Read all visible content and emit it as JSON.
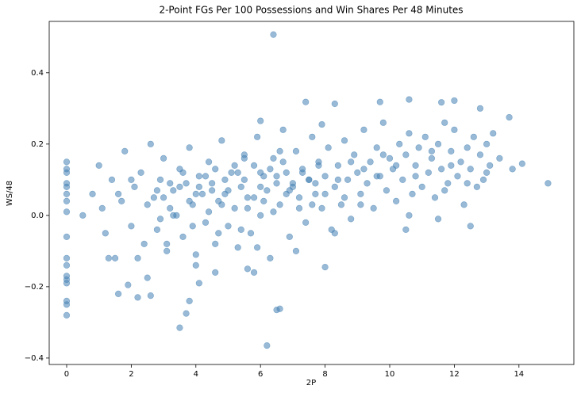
{
  "chart_data": {
    "type": "scatter",
    "title": "2-Point FGs Per 100 Possessions and Win Shares Per 48 Minutes",
    "x_label": "2P",
    "y_label": "WS/48",
    "color": "#4682b4",
    "xlim": [
      -0.54,
      15.7
    ],
    "ylim": [
      -0.418,
      0.544
    ],
    "xticks": [
      0,
      2,
      4,
      6,
      8,
      10,
      12,
      14
    ],
    "yticks": [
      {
        "value": -0.4,
        "label": "−0.4"
      },
      {
        "value": -0.2,
        "label": "−0.2"
      },
      {
        "value": 0,
        "label": "0.0"
      },
      0.2,
      0.4
    ],
    "x": [
      6.4,
      6.2,
      3.5,
      3.7,
      3.8,
      6.5,
      6.6,
      0,
      0,
      0,
      0,
      0,
      0,
      0,
      0,
      0,
      0,
      0,
      0,
      0,
      0,
      0,
      0,
      0,
      14.9,
      14.1,
      13.8,
      12.5,
      10.5,
      11.5,
      2.2,
      1.6,
      1.9,
      2.6,
      2.5,
      10.6,
      12.0,
      9.7,
      7.4,
      8.3,
      11.6,
      12.8,
      13.7,
      6.0,
      7.9,
      5.8,
      4.6,
      4.1,
      5.6,
      8.0,
      0.5,
      0.8,
      1.0,
      1.2,
      1.4,
      1.5,
      1.7,
      1.8,
      2.0,
      2.1,
      2.3,
      2.4,
      2.6,
      2.7,
      2.8,
      2.9,
      3.0,
      3.1,
      3.2,
      3.3,
      3.4,
      3.5,
      3.6,
      3.7,
      3.8,
      3.9,
      4.0,
      4.1,
      4.2,
      4.3,
      4.4,
      4.5,
      4.6,
      4.7,
      4.8,
      4.9,
      5.0,
      5.1,
      5.2,
      5.3,
      5.4,
      5.5,
      5.6,
      5.7,
      5.8,
      5.9,
      6.0,
      6.1,
      6.2,
      6.3,
      6.4,
      6.5,
      6.6,
      6.7,
      6.8,
      6.9,
      7.0,
      7.1,
      7.2,
      7.3,
      7.4,
      7.5,
      7.6,
      7.7,
      7.8,
      7.9,
      8.0,
      8.1,
      8.2,
      8.3,
      8.4,
      8.5,
      8.6,
      8.7,
      8.8,
      8.9,
      9.0,
      9.1,
      9.2,
      9.3,
      9.4,
      9.5,
      9.6,
      9.7,
      9.8,
      9.9,
      10.0,
      10.1,
      10.2,
      10.3,
      10.4,
      10.5,
      10.6,
      10.7,
      10.8,
      10.9,
      11.0,
      11.1,
      11.2,
      11.3,
      11.4,
      11.5,
      11.6,
      11.7,
      11.8,
      11.9,
      12.0,
      12.1,
      12.2,
      12.3,
      12.4,
      12.5,
      12.6,
      12.7,
      12.8,
      12.9,
      13.0,
      13.1,
      13.2,
      13.4,
      3.0,
      3.5,
      4.0,
      4.5,
      5.0,
      5.5,
      6.0,
      6.5,
      7.0,
      7.5,
      3.2,
      3.8,
      4.3,
      4.8,
      5.3,
      5.8,
      6.3,
      6.8,
      7.3,
      7.8,
      2.5,
      3.3,
      4.1,
      4.9,
      5.6,
      6.1,
      6.9,
      7.6,
      8.4,
      9.2,
      2.8,
      3.6,
      4.4,
      5.2,
      6.0,
      6.7,
      7.2,
      8.0,
      8.8,
      9.6,
      1.1,
      1.6,
      2.0,
      2.9,
      4.6,
      5.4,
      6.4,
      7.7,
      8.6,
      9.8,
      10.2,
      10.8,
      11.3,
      11.9,
      12.4,
      13.0,
      3.9,
      4.7,
      5.5,
      6.6,
      1.3,
      2.2,
      3.1,
      4.0,
      5.9,
      7.1,
      8.3,
      9.1,
      10.6,
      11.7
    ],
    "values": [
      0.507,
      -0.365,
      -0.315,
      -0.275,
      -0.24,
      -0.265,
      -0.262,
      -0.28,
      -0.25,
      -0.24,
      -0.19,
      -0.18,
      -0.17,
      -0.14,
      -0.12,
      -0.06,
      0.01,
      0.04,
      0.06,
      0.08,
      0.09,
      0.12,
      0.13,
      0.15,
      0.09,
      0.145,
      0.13,
      -0.03,
      -0.04,
      -0.01,
      -0.23,
      -0.22,
      -0.195,
      -0.225,
      -0.175,
      0.325,
      0.322,
      0.318,
      0.318,
      0.313,
      0.317,
      0.3,
      0.275,
      0.265,
      0.255,
      -0.16,
      -0.16,
      -0.19,
      -0.15,
      -0.145,
      0.0,
      0.06,
      0.14,
      -0.05,
      0.1,
      -0.12,
      0.04,
      0.18,
      -0.03,
      0.08,
      0.12,
      -0.08,
      0.2,
      0.05,
      -0.04,
      0.1,
      0.16,
      -0.1,
      0.02,
      0.07,
      0.0,
      0.13,
      -0.06,
      0.09,
      0.19,
      0.03,
      -0.11,
      0.11,
      0.06,
      -0.02,
      0.15,
      0.07,
      -0.08,
      0.04,
      0.21,
      0.1,
      -0.03,
      0.12,
      0.02,
      -0.09,
      0.08,
      0.17,
      0.05,
      -0.05,
      0.14,
      0.22,
      0.0,
      0.11,
      0.07,
      -0.12,
      0.16,
      0.09,
      0.03,
      0.24,
      0.12,
      -0.06,
      0.08,
      0.18,
      0.05,
      0.13,
      -0.02,
      0.1,
      0.22,
      0.06,
      0.15,
      0.02,
      0.11,
      0.19,
      -0.04,
      0.08,
      0.14,
      0.03,
      0.21,
      0.1,
      -0.01,
      0.17,
      0.12,
      0.06,
      0.24,
      0.09,
      0.15,
      0.02,
      0.19,
      0.11,
      0.26,
      0.07,
      0.16,
      0.13,
      0.04,
      0.2,
      0.1,
      0.17,
      0.23,
      0.06,
      0.14,
      0.19,
      0.08,
      0.22,
      0.12,
      0.16,
      0.05,
      0.2,
      0.13,
      0.26,
      0.09,
      0.18,
      0.24,
      0.11,
      0.15,
      0.03,
      0.19,
      0.13,
      0.22,
      0.08,
      0.17,
      0.1,
      0.2,
      0.14,
      0.23,
      0.16,
      0.05,
      0.08,
      0.06,
      0.09,
      0.07,
      0.1,
      0.08,
      0.11,
      0.09,
      0.1,
      0.09,
      0.04,
      0.11,
      0.03,
      0.12,
      0.05,
      0.13,
      0.06,
      0.12,
      0.14,
      0.03,
      0.0,
      0.08,
      0.06,
      0.02,
      0.04,
      0.07,
      0.03,
      0.1,
      0.13,
      0.07,
      0.12,
      0.01,
      0.14,
      0.12,
      0.15,
      0.02,
      0.06,
      0.15,
      0.11,
      0.02,
      0.06,
      0.1,
      -0.01,
      0.13,
      -0.04,
      0.01,
      0.09,
      0.05,
      0.17,
      0.14,
      0.11,
      0.18,
      0.14,
      0.09,
      0.12,
      -0.03,
      -0.05,
      0.16,
      0.18,
      -0.12,
      -0.12,
      -0.08,
      -0.14,
      -0.09,
      -0.1,
      -0.05,
      0.03,
      0.0,
      0.07
    ]
  }
}
